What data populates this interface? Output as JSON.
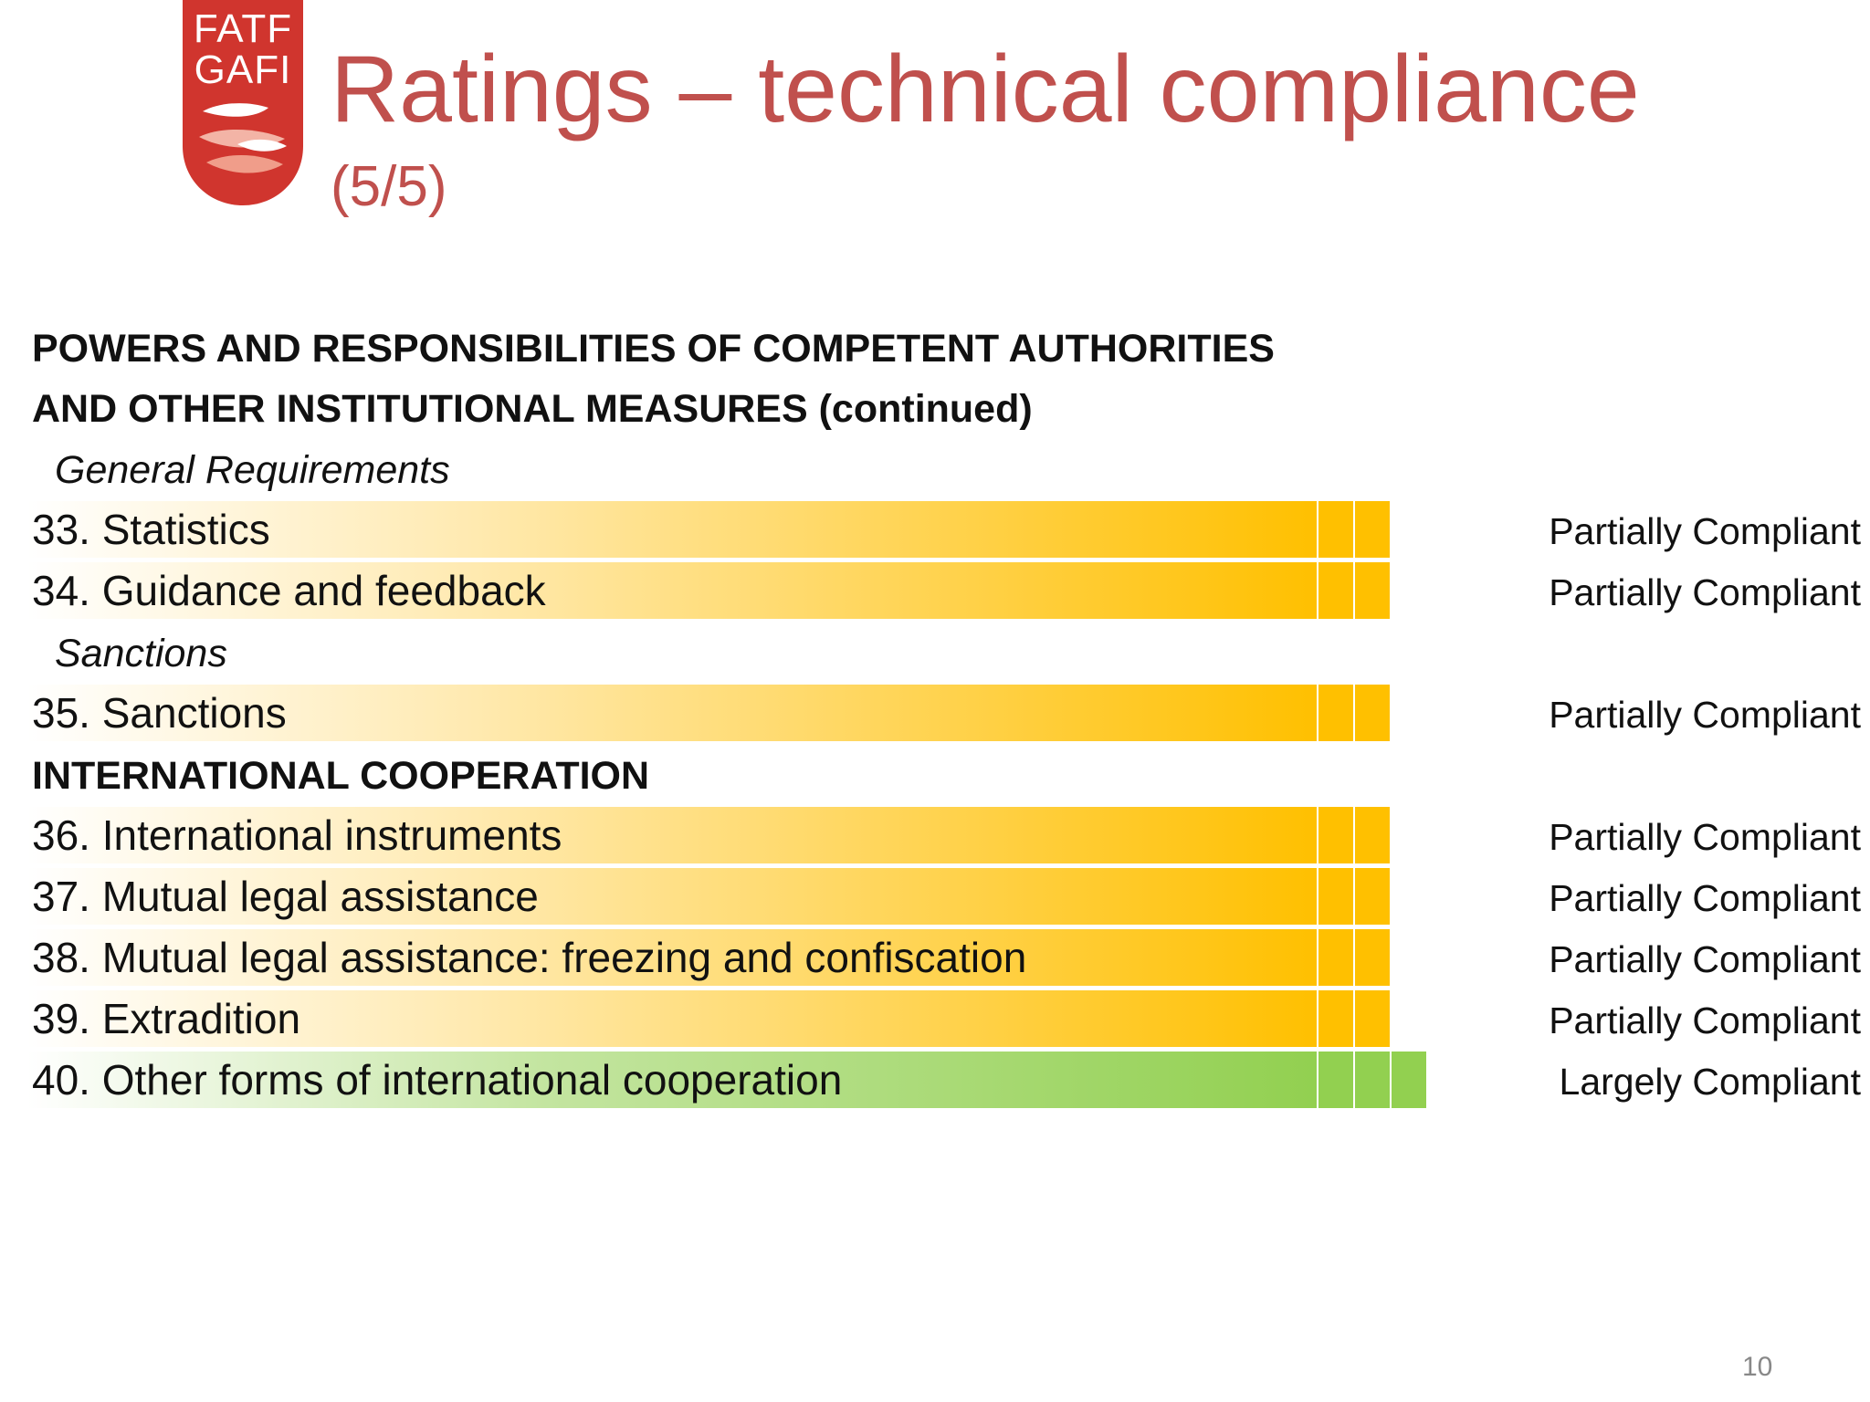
{
  "logo": {
    "line1": "FATF",
    "line2": "GAFI",
    "color": "#d0352e"
  },
  "title": "Ratings – technical compliance",
  "subtitle": "(5/5)",
  "section1": {
    "heading_line1": "POWERS AND RESPONSIBILITIES OF COMPETENT AUTHORITIES",
    "heading_line2": "AND OTHER INSTITUTIONAL MEASURES (continued)",
    "groups": {
      "general": "General Requirements",
      "sanctions": "Sanctions"
    }
  },
  "section2": {
    "heading": "INTERNATIONAL COOPERATION"
  },
  "rows": [
    {
      "label": "33. Statistics",
      "rating": "Partially Compliant",
      "level": "partial",
      "segments": 2
    },
    {
      "label": "34. Guidance and feedback",
      "rating": "Partially Compliant",
      "level": "partial",
      "segments": 2
    },
    {
      "label": "35. Sanctions",
      "rating": "Partially Compliant",
      "level": "partial",
      "segments": 2
    },
    {
      "label": "36. International instruments",
      "rating": "Partially Compliant",
      "level": "partial",
      "segments": 2
    },
    {
      "label": "37. Mutual legal assistance",
      "rating": "Partially Compliant",
      "level": "partial",
      "segments": 2
    },
    {
      "label": "38. Mutual legal assistance: freezing and confiscation",
      "rating": "Partially Compliant",
      "level": "partial",
      "segments": 2
    },
    {
      "label": "39. Extradition",
      "rating": "Partially Compliant",
      "level": "partial",
      "segments": 2
    },
    {
      "label": "40. Other forms of international cooperation",
      "rating": "Largely Compliant",
      "level": "largely",
      "segments": 3
    }
  ],
  "colors": {
    "title": "#c0504d",
    "partially_compliant": "#ffc000",
    "largely_compliant": "#92d050"
  },
  "page_number": "10"
}
